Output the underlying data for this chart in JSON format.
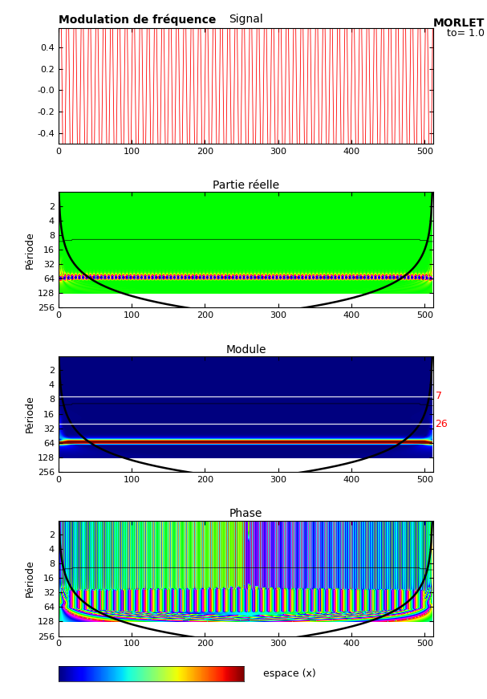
{
  "title_signal": "Signal",
  "title_modulation": "Modulation de fréquence",
  "title_morlet": "MORLET",
  "title_to": "to= 1.0",
  "title_partie_reelle": "Partie réelle",
  "title_module": "Module",
  "title_phase": "Phase",
  "xlabel": "espace (x)",
  "ylabel_periode": "Période",
  "signal_color": "#FF0000",
  "n_samples": 512,
  "signal_period": 10.0,
  "yticks_signal": [
    0.4,
    0.2,
    0.0,
    -0.2,
    -0.4
  ],
  "ytick_labels_signal": [
    "0.4",
    "0.2",
    "-0.0",
    "-0.2",
    "-0.4"
  ],
  "xticks": [
    0,
    100,
    200,
    300,
    400,
    500
  ],
  "xtick_labels": [
    "0",
    "100",
    "200",
    "300",
    "400",
    "500"
  ],
  "period_ticks": [
    2,
    4,
    8,
    16,
    32,
    64,
    128,
    256
  ],
  "module_label_7": "7",
  "module_label_26": "26",
  "omega0": 6.0,
  "n_scales": 100,
  "min_scale": 1.0,
  "max_scale": 128.0
}
